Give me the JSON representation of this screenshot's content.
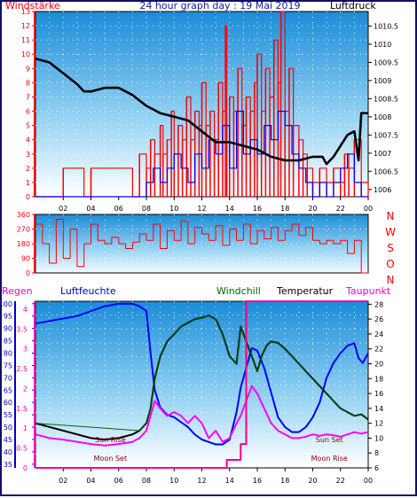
{
  "chart_data": [
    {
      "type": "line",
      "title": "24 hour graph day : 19 Mai 2019",
      "left_label": "Windstärke",
      "right_label": "Luftdruck",
      "x_ticks": [
        "02",
        "04",
        "06",
        "08",
        "10",
        "12",
        "14",
        "16",
        "18",
        "20",
        "22",
        "00"
      ],
      "y_left_ticks": [
        "0",
        "1",
        "2",
        "3",
        "4",
        "5",
        "6",
        "7",
        "8",
        "9",
        "10",
        "11",
        "12",
        "13"
      ],
      "y_right_ticks": [
        "1006",
        "1006.5",
        "1007",
        "1007.5",
        "1008",
        "1008.5",
        "1009",
        "1009.5",
        "1010",
        "1010.5"
      ],
      "y_left_range": [
        0,
        13
      ],
      "y_right_range": [
        1005.8,
        1010.9
      ],
      "x_range_hours": [
        0,
        24
      ],
      "series": [
        {
          "role": "wind-gust",
          "color": "#ff0000",
          "x": [
            0,
            2,
            3.5,
            4,
            7,
            7.5,
            8,
            8.3,
            8.6,
            9,
            9.2,
            9.5,
            9.8,
            10,
            10.3,
            10.6,
            10.9,
            11.2,
            11.5,
            11.8,
            12,
            12.3,
            12.6,
            12.9,
            13.2,
            13.5,
            13.7,
            13.8,
            14,
            14.3,
            14.6,
            14.9,
            15.2,
            15.5,
            15.8,
            16,
            16.3,
            16.6,
            16.9,
            17.2,
            17.5,
            17.7,
            18,
            18.3,
            18.6,
            19,
            19.3,
            19.6,
            20,
            20.5,
            21,
            21.5,
            22,
            22.3,
            22.6,
            23,
            23.5,
            24
          ],
          "y": [
            0,
            2,
            0,
            2,
            0,
            3,
            2,
            4,
            3,
            5,
            3,
            4,
            6,
            3,
            5,
            4,
            7,
            4,
            6,
            5,
            8,
            5,
            6,
            4,
            8,
            6,
            12,
            5,
            7,
            6,
            9,
            5,
            7,
            6,
            8,
            10,
            6,
            9,
            7,
            11,
            8,
            13,
            6,
            9,
            5,
            4,
            3,
            2,
            1,
            2,
            1,
            2,
            1,
            3,
            2,
            4,
            1,
            0
          ]
        },
        {
          "role": "wind-speed",
          "color": "#0000ff",
          "x": [
            0,
            7.5,
            8,
            8.5,
            9,
            9.5,
            10,
            10.5,
            11,
            11.5,
            12,
            12.5,
            13,
            13.5,
            14,
            14.5,
            15,
            15.5,
            16,
            16.5,
            17,
            17.5,
            18,
            18.5,
            19,
            19.5,
            20,
            20.5,
            21,
            21.5,
            22,
            22.5,
            23,
            23.5,
            24
          ],
          "y": [
            0,
            0,
            1,
            2,
            1,
            2,
            3,
            2,
            1,
            3,
            2,
            4,
            3,
            5,
            2,
            6,
            3,
            4,
            3,
            5,
            4,
            6,
            5,
            3,
            2,
            1,
            0,
            1,
            0,
            1,
            2,
            3,
            1,
            0,
            0
          ]
        },
        {
          "role": "pressure",
          "color": "#000000",
          "x": [
            0,
            1,
            2,
            3,
            3.5,
            4,
            5,
            6,
            6.5,
            7,
            8,
            9,
            10,
            11,
            12,
            13,
            14,
            15,
            16,
            17,
            18,
            19,
            20,
            20.7,
            21,
            21.5,
            22,
            22.5,
            23,
            23.3,
            23.5,
            24
          ],
          "y": [
            1009.6,
            1009.5,
            1009.2,
            1008.9,
            1008.7,
            1008.7,
            1008.8,
            1008.8,
            1008.7,
            1008.6,
            1008.3,
            1008.1,
            1008.0,
            1007.9,
            1007.6,
            1007.3,
            1007.3,
            1007.2,
            1007.1,
            1006.9,
            1006.8,
            1006.8,
            1006.9,
            1006.9,
            1006.7,
            1006.9,
            1007.2,
            1007.5,
            1007.6,
            1006.8,
            1008.1,
            1008.1
          ]
        }
      ]
    },
    {
      "type": "scatter",
      "right_axis_letters": [
        "N",
        "W",
        "S",
        "O",
        "N"
      ],
      "x_range_hours": [
        0,
        24
      ],
      "y_ticks": [
        "0",
        "90",
        "180",
        "270",
        "360"
      ],
      "y_range": [
        0,
        360
      ],
      "series": [
        {
          "role": "wind-direction",
          "color": "#ff0000",
          "x": [
            0,
            0.5,
            1,
            1.5,
            2,
            2.5,
            3,
            3.5,
            4,
            4.5,
            5,
            5.5,
            6,
            6.5,
            7,
            7.5,
            8,
            8.5,
            9,
            9.5,
            10,
            10.5,
            11,
            11.5,
            12,
            12.5,
            13,
            13.5,
            14,
            14.5,
            15,
            15.5,
            16,
            16.5,
            17,
            17.5,
            18,
            18.5,
            19,
            19.5,
            20,
            20.5,
            21,
            21.5,
            22,
            22.5,
            23,
            23.5,
            24
          ],
          "y": [
            300,
            180,
            60,
            330,
            90,
            270,
            40,
            180,
            300,
            200,
            180,
            220,
            180,
            150,
            190,
            240,
            200,
            300,
            150,
            260,
            200,
            320,
            180,
            280,
            240,
            200,
            290,
            170,
            270,
            200,
            300,
            180,
            260,
            210,
            280,
            200,
            260,
            300,
            230,
            280,
            200,
            180,
            200,
            180,
            200,
            120,
            200,
            0,
            0
          ]
        }
      ]
    },
    {
      "type": "line",
      "left_label_1": "Regen",
      "left_label_2": "Luftfeuchte",
      "label_windchill": "Windchill",
      "label_temperatur": "Temperatur",
      "label_taupunkt": "Taupunkt",
      "x_ticks": [
        "02",
        "04",
        "06",
        "08",
        "10",
        "12",
        "14",
        "16",
        "18",
        "20",
        "22",
        "00"
      ],
      "y_rain_ticks": [
        "0",
        "0.5",
        "1",
        "1.5",
        "2",
        "2.5",
        "3",
        "3.5",
        "4"
      ],
      "y_humidity_ticks": [
        "35",
        "40",
        "45",
        "50",
        "55",
        "60",
        "65",
        "70",
        "75",
        "80",
        "85",
        "90",
        "95",
        "100"
      ],
      "y_temp_ticks": [
        "6",
        "8",
        "10",
        "12",
        "14",
        "16",
        "18",
        "20",
        "22",
        "24",
        "26",
        "28"
      ],
      "y_rain_range": [
        0,
        4.2
      ],
      "y_humidity_range": [
        33.5,
        101
      ],
      "y_temp_range": [
        6,
        28.4
      ],
      "x_range_hours": [
        0,
        24
      ],
      "annotations": [
        {
          "text": "Sun Rise",
          "x": 5.4
        },
        {
          "text": "Moon Set",
          "x": 5.4
        },
        {
          "text": "Sun Set",
          "x": 21.2
        },
        {
          "text": "Moon Rise",
          "x": 21.2
        }
      ],
      "series": [
        {
          "role": "humidity",
          "color": "#0000ff",
          "x": [
            0,
            1,
            2,
            3,
            4,
            5,
            6,
            7,
            7.5,
            8,
            8.3,
            8.6,
            9,
            9.5,
            10,
            10.5,
            11,
            11.5,
            12,
            12.5,
            13,
            13.5,
            14,
            14.5,
            14.8,
            15.2,
            15.6,
            16,
            16.5,
            17,
            17.5,
            18,
            18.5,
            19,
            19.5,
            20,
            20.5,
            21,
            21.5,
            22,
            22.5,
            23,
            23.3,
            23.6,
            24
          ],
          "y": [
            92,
            93,
            94,
            95,
            97,
            99,
            100,
            100,
            99,
            97,
            80,
            65,
            58,
            55,
            54,
            52,
            50,
            47,
            45,
            44,
            43,
            43,
            45,
            56,
            66,
            74,
            82,
            81,
            74,
            64,
            54,
            50,
            48,
            48,
            50,
            54,
            60,
            70,
            76,
            80,
            83,
            84,
            78,
            76,
            80
          ]
        },
        {
          "role": "temperature",
          "color": "#000000",
          "x": [
            0,
            1,
            2,
            3,
            4,
            5,
            6,
            7,
            7.5,
            8,
            8.3,
            8.6,
            9,
            9.5,
            10,
            10.5,
            11,
            11.5,
            12,
            12.5,
            13,
            13.5,
            14,
            14.5,
            14.8,
            15.2,
            15.6,
            16,
            16.3,
            16.7,
            17,
            17.5,
            18,
            18.5,
            19,
            19.5,
            20,
            20.5,
            21,
            21.5,
            22,
            22.5,
            23,
            23.5,
            24
          ],
          "y": [
            12,
            11.5,
            11,
            10.5,
            10,
            9.8,
            10,
            10.5,
            11,
            12,
            14,
            18,
            21,
            23,
            24,
            25,
            25.5,
            26,
            26.2,
            26.5,
            26,
            24,
            21,
            20,
            25,
            23,
            21,
            19,
            21,
            22.5,
            23,
            22.8,
            22,
            21,
            20,
            19,
            18,
            17,
            16,
            15,
            14,
            13.5,
            13,
            13.2,
            12.5
          ]
        },
        {
          "role": "windchill",
          "color": "#006600",
          "x": [
            0,
            7.5,
            8,
            8.3,
            8.6,
            9,
            9.5,
            10,
            10.5,
            11,
            11.5,
            12,
            12.5,
            13,
            13.5,
            14,
            14.5,
            14.8,
            15.2,
            15.6,
            16,
            16.3,
            16.7,
            17,
            17.5,
            18,
            18.5,
            19,
            19.5,
            20,
            20.5,
            21,
            21.5,
            22,
            22.5,
            23,
            23.5,
            24
          ],
          "y": [
            12,
            11,
            12,
            14,
            18,
            21,
            23,
            24,
            25,
            25.5,
            26,
            26.2,
            26.5,
            26,
            24,
            21,
            20,
            25,
            23,
            21,
            19,
            21,
            22.5,
            23,
            22.8,
            22,
            21,
            20,
            19,
            18,
            17,
            16,
            15,
            14,
            13.5,
            13,
            13.2,
            12.5
          ]
        },
        {
          "role": "dewpoint",
          "color": "#ff00ff",
          "x": [
            0,
            1,
            2,
            3,
            4,
            5,
            6,
            7,
            7.5,
            8,
            8.3,
            8.6,
            9,
            9.5,
            10,
            10.5,
            11,
            11.5,
            12,
            12.5,
            13,
            13.5,
            14,
            14.5,
            14.8,
            15.2,
            15.6,
            16,
            16.5,
            17,
            17.5,
            18,
            18.5,
            19,
            19.5,
            20,
            20.5,
            21,
            21.5,
            22,
            22.5,
            23,
            23.5,
            24
          ],
          "y": [
            10.5,
            10,
            9.8,
            9.5,
            9.2,
            9,
            9.2,
            9.5,
            10,
            11,
            13,
            15,
            14,
            13,
            13.5,
            13,
            12,
            13,
            12,
            10,
            11,
            9.5,
            10,
            12,
            13,
            15,
            17,
            16,
            14,
            12,
            11,
            10.5,
            10,
            10,
            10.2,
            10.5,
            10.3,
            10.5,
            10.4,
            10.2,
            10.5,
            10.8,
            10.6,
            10.8
          ]
        },
        {
          "role": "rain",
          "color": "#ff0080",
          "x": [
            0,
            13.8,
            13.8,
            14.8,
            14.8,
            15.2,
            15.2,
            24
          ],
          "y": [
            0,
            0,
            0.2,
            0.2,
            0.6,
            0.6,
            4.2,
            4.2
          ]
        }
      ]
    }
  ]
}
